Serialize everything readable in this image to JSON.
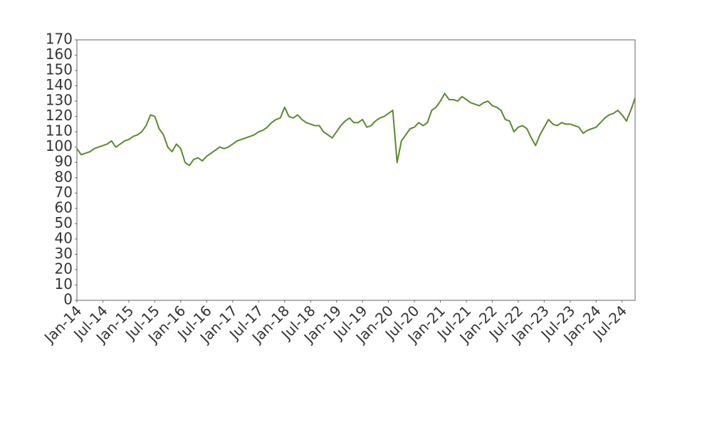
{
  "chart_data": {
    "type": "line",
    "x": [
      "2014-01",
      "2014-02",
      "2014-03",
      "2014-04",
      "2014-05",
      "2014-06",
      "2014-07",
      "2014-08",
      "2014-09",
      "2014-10",
      "2014-11",
      "2014-12",
      "2015-01",
      "2015-02",
      "2015-03",
      "2015-04",
      "2015-05",
      "2015-06",
      "2015-07",
      "2015-08",
      "2015-09",
      "2015-10",
      "2015-11",
      "2015-12",
      "2016-01",
      "2016-02",
      "2016-03",
      "2016-04",
      "2016-05",
      "2016-06",
      "2016-07",
      "2016-08",
      "2016-09",
      "2016-10",
      "2016-11",
      "2016-12",
      "2017-01",
      "2017-02",
      "2017-03",
      "2017-04",
      "2017-05",
      "2017-06",
      "2017-07",
      "2017-08",
      "2017-09",
      "2017-10",
      "2017-11",
      "2017-12",
      "2018-01",
      "2018-02",
      "2018-03",
      "2018-04",
      "2018-05",
      "2018-06",
      "2018-07",
      "2018-08",
      "2018-09",
      "2018-10",
      "2018-11",
      "2018-12",
      "2019-01",
      "2019-02",
      "2019-03",
      "2019-04",
      "2019-05",
      "2019-06",
      "2019-07",
      "2019-08",
      "2019-09",
      "2019-10",
      "2019-11",
      "2019-12",
      "2020-01",
      "2020-02",
      "2020-03",
      "2020-04",
      "2020-05",
      "2020-06",
      "2020-07",
      "2020-08",
      "2020-09",
      "2020-10",
      "2020-11",
      "2020-12",
      "2021-01",
      "2021-02",
      "2021-03",
      "2021-04",
      "2021-05",
      "2021-06",
      "2021-07",
      "2021-08",
      "2021-09",
      "2021-10",
      "2021-11",
      "2021-12",
      "2022-01",
      "2022-02",
      "2022-03",
      "2022-04",
      "2022-05",
      "2022-06",
      "2022-07",
      "2022-08",
      "2022-09",
      "2022-10",
      "2022-11",
      "2022-12",
      "2023-01",
      "2023-02",
      "2023-03",
      "2023-04",
      "2023-05",
      "2023-06",
      "2023-07",
      "2023-08",
      "2023-09",
      "2023-10",
      "2023-11",
      "2023-12",
      "2024-01",
      "2024-02",
      "2024-03",
      "2024-04",
      "2024-05",
      "2024-06",
      "2024-07",
      "2024-08",
      "2024-09",
      "2024-10"
    ],
    "series": [
      {
        "color": "#5a8a2a",
        "values": [
          99,
          95,
          96,
          97,
          99,
          100,
          101,
          102,
          104,
          100,
          102,
          104,
          105,
          107,
          108,
          110,
          114,
          121,
          120,
          112,
          108,
          100,
          97,
          102,
          99,
          90,
          88,
          92,
          93,
          91,
          94,
          96,
          98,
          100,
          99,
          100,
          102,
          104,
          105,
          106,
          107,
          108,
          110,
          111,
          113,
          116,
          118,
          119,
          126,
          120,
          119,
          121,
          118,
          116,
          115,
          114,
          114,
          110,
          108,
          106,
          110,
          114,
          117,
          119,
          116,
          116,
          118,
          113,
          114,
          117,
          119,
          120,
          122,
          124,
          90,
          104,
          108,
          112,
          113,
          116,
          114,
          116,
          124,
          126,
          130,
          135,
          131,
          131,
          130,
          133,
          131,
          129,
          128,
          127,
          129,
          130,
          127,
          126,
          124,
          118,
          117,
          110,
          113,
          114,
          112,
          106,
          101,
          108,
          113,
          118,
          115,
          114,
          116,
          115,
          115,
          114,
          113,
          109,
          111,
          112,
          113,
          116,
          119,
          121,
          122,
          124,
          121,
          117,
          124,
          132
        ]
      }
    ],
    "xlim": [
      "2014-01",
      "2024-10"
    ],
    "xticks": [
      {
        "value": "2014-01",
        "label": "Jan-14"
      },
      {
        "value": "2014-07",
        "label": "Jul-14"
      },
      {
        "value": "2015-01",
        "label": "Jan-15"
      },
      {
        "value": "2015-07",
        "label": "Jul-15"
      },
      {
        "value": "2016-01",
        "label": "Jan-16"
      },
      {
        "value": "2016-07",
        "label": "Jul-16"
      },
      {
        "value": "2017-01",
        "label": "Jan-17"
      },
      {
        "value": "2017-07",
        "label": "Jul-17"
      },
      {
        "value": "2018-01",
        "label": "Jan-18"
      },
      {
        "value": "2018-07",
        "label": "Jul-18"
      },
      {
        "value": "2019-01",
        "label": "Jan-19"
      },
      {
        "value": "2019-07",
        "label": "Jul-19"
      },
      {
        "value": "2020-01",
        "label": "Jan-20"
      },
      {
        "value": "2020-07",
        "label": "Jul-20"
      },
      {
        "value": "2021-01",
        "label": "Jan-21"
      },
      {
        "value": "2021-07",
        "label": "Jul-21"
      },
      {
        "value": "2022-01",
        "label": "Jan-22"
      },
      {
        "value": "2022-07",
        "label": "Jul-22"
      },
      {
        "value": "2023-01",
        "label": "Jan-23"
      },
      {
        "value": "2023-07",
        "label": "Jul-23"
      },
      {
        "value": "2024-01",
        "label": "Jan-24"
      },
      {
        "value": "2024-07",
        "label": "Jul-24"
      }
    ],
    "ylim": [
      0,
      170
    ],
    "yticks": [
      0,
      10,
      20,
      30,
      40,
      50,
      60,
      70,
      80,
      90,
      100,
      110,
      120,
      130,
      140,
      150,
      160,
      170
    ],
    "grid": false
  }
}
